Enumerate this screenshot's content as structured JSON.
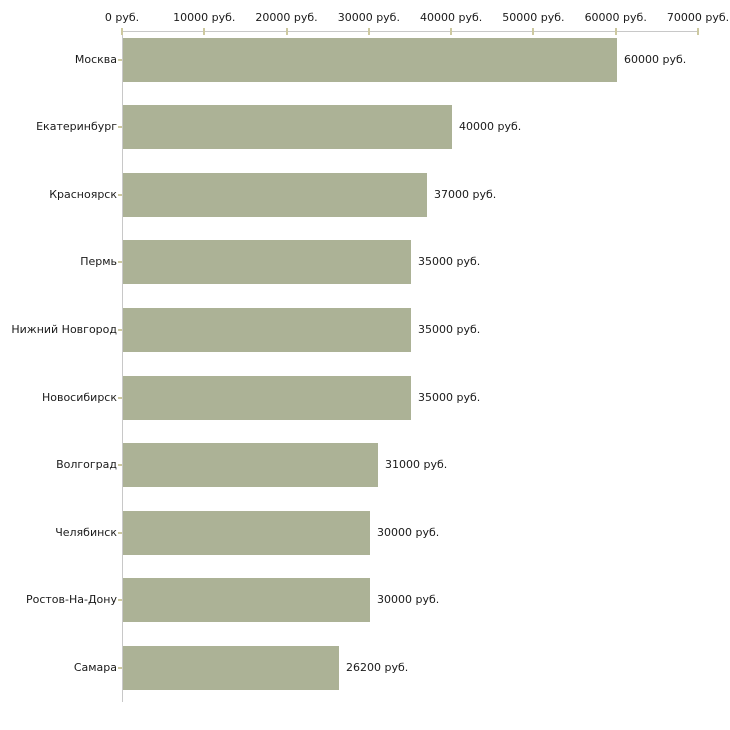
{
  "chart_data": {
    "type": "bar",
    "orientation": "horizontal",
    "title": "",
    "unit": "руб.",
    "categories": [
      "Москва",
      "Екатеринбург",
      "Красноярск",
      "Пермь",
      "Нижний Новгород",
      "Новосибирск",
      "Волгоград",
      "Челябинск",
      "Ростов-На-Дону",
      "Самара"
    ],
    "values": [
      60000,
      40000,
      37000,
      35000,
      35000,
      35000,
      31000,
      30000,
      30000,
      26200
    ],
    "value_labels": [
      "60000 руб.",
      "40000 руб.",
      "37000 руб.",
      "35000 руб.",
      "35000 руб.",
      "35000 руб.",
      "31000 руб.",
      "30000 руб.",
      "30000 руб.",
      "26200 руб."
    ],
    "x_tick_values": [
      0,
      10000,
      20000,
      30000,
      40000,
      50000,
      60000,
      70000
    ],
    "x_tick_labels": [
      "0 руб.",
      "10000 руб.",
      "20000 руб.",
      "30000 руб.",
      "40000 руб.",
      "50000 руб.",
      "60000 руб.",
      "70000 руб."
    ],
    "xlim": [
      0,
      70000
    ],
    "grid": false,
    "legend": "none",
    "axis_position": "top",
    "colors": {
      "bar": "#acb296",
      "axis_line": "#c8c8c8",
      "tick": "#cdc9a0",
      "text": "#1a1a1a",
      "background": "#ffffff"
    }
  }
}
